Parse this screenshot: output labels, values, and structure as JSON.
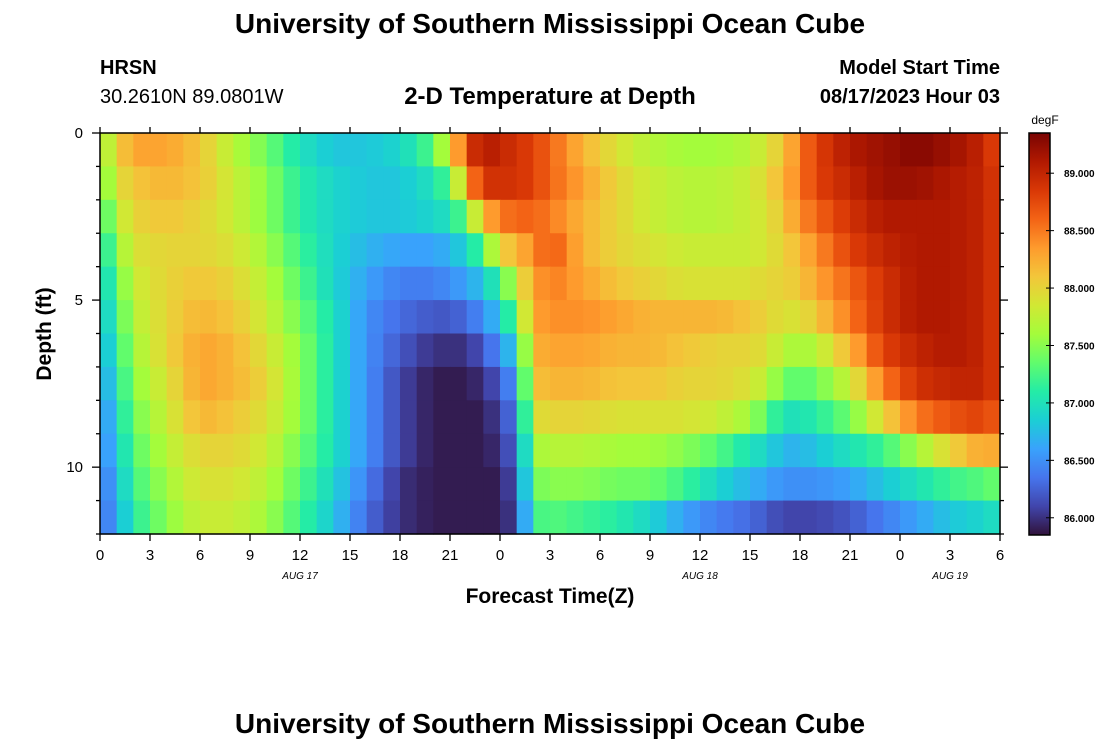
{
  "header": {
    "title": "University of Southern Mississippi Ocean Cube",
    "station": "HRSN",
    "coords": "30.2610N  89.0801W",
    "subtitle": "2-D Temperature at Depth",
    "model_start_label": "Model Start Time",
    "model_start_value": "08/17/2023 Hour 03"
  },
  "footer": {
    "title": "University of Southern Mississippi Ocean Cube"
  },
  "colors": {
    "background": "#ffffff",
    "axis": "#000000",
    "colormap": [
      "#30123b",
      "#4145ab",
      "#4675ed",
      "#39a2fc",
      "#1bcfd4",
      "#24eca6",
      "#61fc6c",
      "#a4fc3b",
      "#d1e834",
      "#f3c63a",
      "#fe9b2d",
      "#f36315",
      "#d93806",
      "#b11901",
      "#7a0403"
    ]
  },
  "chart_data": {
    "type": "heatmap",
    "title": "2-D Temperature at Depth",
    "xlabel": "Forecast Time(Z)",
    "ylabel": "Depth (ft)",
    "x_ticks": [
      "0",
      "3",
      "6",
      "9",
      "12",
      "15",
      "18",
      "21",
      "0",
      "3",
      "6",
      "9",
      "12",
      "15",
      "18",
      "21",
      "0",
      "3",
      "6"
    ],
    "x_tick_hours": [
      0,
      3,
      6,
      9,
      12,
      15,
      18,
      21,
      24,
      27,
      30,
      33,
      36,
      39,
      42,
      45,
      48,
      51,
      54
    ],
    "date_labels": [
      {
        "label": "AUG 17",
        "hour": 12
      },
      {
        "label": "AUG 18",
        "hour": 36
      },
      {
        "label": "AUG 19",
        "hour": 51
      }
    ],
    "x_range_hours": [
      0,
      54
    ],
    "y_ticks": [
      "0",
      "5",
      "10"
    ],
    "y_tick_values": [
      0,
      5,
      10
    ],
    "y_range_ft": [
      0,
      12
    ],
    "colorbar": {
      "unit": "degF",
      "min": 85.85,
      "max": 89.35,
      "tick_labels": [
        "86.000",
        "86.500",
        "87.000",
        "87.500",
        "88.000",
        "88.500",
        "89.000"
      ],
      "tick_values": [
        86.0,
        86.5,
        87.0,
        87.5,
        88.0,
        88.5,
        89.0
      ]
    },
    "depth_levels_ft": [
      0.5,
      1.5,
      2.5,
      3.5,
      4.5,
      5.5,
      6.5,
      7.5,
      8.5,
      9.5,
      10.5,
      11.5
    ],
    "time_nodes_hours": [
      0,
      1,
      2,
      4,
      6,
      8,
      10,
      12,
      14,
      16,
      18,
      20,
      21,
      22,
      23,
      24,
      25,
      26,
      27,
      29,
      31,
      33,
      35,
      37,
      39,
      40,
      41,
      42,
      43,
      45,
      47,
      49,
      51,
      53,
      54
    ],
    "values_degF": [
      [
        87.5,
        88.0,
        88.3,
        88.3,
        88.1,
        87.7,
        87.4,
        87.0,
        86.8,
        86.8,
        86.9,
        87.3,
        87.9,
        88.8,
        89.1,
        89.0,
        88.9,
        88.8,
        88.6,
        88.2,
        87.9,
        87.7,
        87.6,
        87.6,
        87.7,
        87.9,
        88.1,
        88.5,
        88.8,
        89.1,
        89.2,
        89.3,
        89.2,
        89.0,
        88.7
      ],
      [
        87.3,
        87.9,
        88.1,
        88.2,
        88.1,
        87.8,
        87.5,
        87.1,
        86.9,
        86.8,
        86.8,
        87.0,
        87.3,
        88.3,
        88.9,
        88.9,
        88.9,
        88.8,
        88.6,
        88.3,
        88.0,
        87.8,
        87.7,
        87.7,
        87.8,
        88.0,
        88.2,
        88.5,
        88.8,
        89.0,
        89.2,
        89.2,
        89.1,
        89.0,
        88.8
      ],
      [
        87.1,
        87.7,
        88.0,
        88.1,
        88.0,
        87.8,
        87.5,
        87.1,
        86.9,
        86.8,
        86.8,
        86.9,
        87.0,
        87.4,
        88.2,
        88.5,
        88.6,
        88.6,
        88.5,
        88.2,
        88.0,
        87.8,
        87.7,
        87.7,
        87.8,
        87.9,
        88.1,
        88.4,
        88.6,
        88.9,
        89.1,
        89.1,
        89.1,
        89.0,
        88.8
      ],
      [
        86.9,
        87.5,
        87.9,
        88.0,
        88.0,
        87.9,
        87.6,
        87.2,
        86.9,
        86.7,
        86.6,
        86.6,
        86.7,
        86.9,
        87.3,
        88.0,
        88.2,
        88.4,
        88.7,
        88.2,
        88.0,
        87.9,
        87.8,
        87.8,
        87.8,
        87.9,
        88.0,
        88.2,
        88.4,
        88.8,
        89.0,
        89.1,
        89.1,
        89.0,
        88.8
      ],
      [
        86.8,
        87.3,
        87.8,
        88.0,
        88.1,
        88.0,
        87.7,
        87.3,
        86.9,
        86.6,
        86.4,
        86.4,
        86.5,
        86.6,
        86.8,
        87.2,
        87.8,
        88.3,
        88.5,
        88.3,
        88.1,
        88.0,
        87.9,
        87.9,
        87.9,
        88.0,
        88.0,
        88.1,
        88.3,
        88.6,
        88.9,
        89.1,
        89.1,
        89.0,
        88.8
      ],
      [
        86.7,
        87.2,
        87.7,
        88.0,
        88.2,
        88.1,
        87.8,
        87.4,
        87.0,
        86.5,
        86.3,
        86.2,
        86.2,
        86.3,
        86.5,
        86.8,
        87.4,
        88.3,
        88.4,
        88.4,
        88.3,
        88.2,
        88.2,
        88.2,
        88.1,
        88.0,
        87.9,
        87.9,
        88.1,
        88.5,
        88.9,
        89.1,
        89.1,
        89.0,
        88.8
      ],
      [
        86.6,
        87.1,
        87.6,
        88.0,
        88.3,
        88.2,
        87.9,
        87.5,
        87.0,
        86.5,
        86.2,
        86.0,
        86.0,
        86.0,
        86.2,
        86.5,
        86.9,
        88.2,
        88.3,
        88.3,
        88.2,
        88.2,
        88.1,
        88.0,
        88.0,
        87.9,
        87.7,
        87.6,
        87.7,
        88.2,
        88.8,
        89.0,
        89.1,
        89.0,
        88.8
      ],
      [
        86.5,
        87.0,
        87.5,
        87.9,
        88.3,
        88.2,
        88.0,
        87.5,
        87.0,
        86.5,
        86.1,
        85.9,
        85.9,
        85.9,
        86.0,
        86.2,
        86.6,
        88.1,
        88.2,
        88.2,
        88.1,
        88.1,
        88.0,
        88.0,
        87.9,
        87.7,
        87.4,
        87.3,
        87.4,
        87.8,
        88.5,
        88.9,
        89.0,
        89.0,
        88.8
      ],
      [
        86.4,
        86.9,
        87.4,
        87.8,
        88.2,
        88.1,
        87.9,
        87.5,
        87.0,
        86.5,
        86.1,
        85.9,
        85.9,
        85.9,
        85.9,
        86.1,
        86.4,
        87.9,
        88.0,
        88.0,
        87.9,
        87.9,
        87.9,
        87.8,
        87.6,
        87.3,
        87.0,
        87.0,
        87.1,
        87.4,
        88.0,
        88.5,
        88.7,
        88.8,
        88.6
      ],
      [
        86.4,
        86.8,
        87.3,
        87.7,
        88.0,
        88.0,
        87.8,
        87.4,
        87.0,
        86.5,
        86.1,
        85.9,
        85.9,
        85.9,
        85.9,
        86.0,
        86.3,
        87.6,
        87.7,
        87.7,
        87.6,
        87.6,
        87.5,
        87.3,
        87.0,
        86.9,
        86.7,
        86.7,
        86.8,
        87.0,
        87.2,
        87.6,
        88.0,
        88.3,
        88.2
      ],
      [
        86.3,
        86.7,
        87.2,
        87.6,
        87.9,
        87.9,
        87.7,
        87.3,
        86.9,
        86.4,
        86.0,
        85.9,
        85.9,
        85.9,
        85.9,
        85.9,
        86.2,
        87.4,
        87.5,
        87.5,
        87.4,
        87.4,
        87.2,
        86.9,
        86.7,
        86.6,
        86.5,
        86.5,
        86.5,
        86.6,
        86.8,
        87.0,
        87.2,
        87.3,
        87.4
      ],
      [
        86.3,
        86.6,
        87.1,
        87.5,
        87.8,
        87.8,
        87.6,
        87.2,
        86.8,
        86.3,
        86.0,
        85.9,
        85.9,
        85.9,
        85.9,
        85.9,
        86.1,
        87.2,
        87.3,
        87.2,
        87.1,
        86.9,
        86.6,
        86.4,
        86.3,
        86.2,
        86.1,
        86.1,
        86.1,
        86.2,
        86.4,
        86.6,
        86.8,
        86.9,
        87.0
      ]
    ]
  }
}
